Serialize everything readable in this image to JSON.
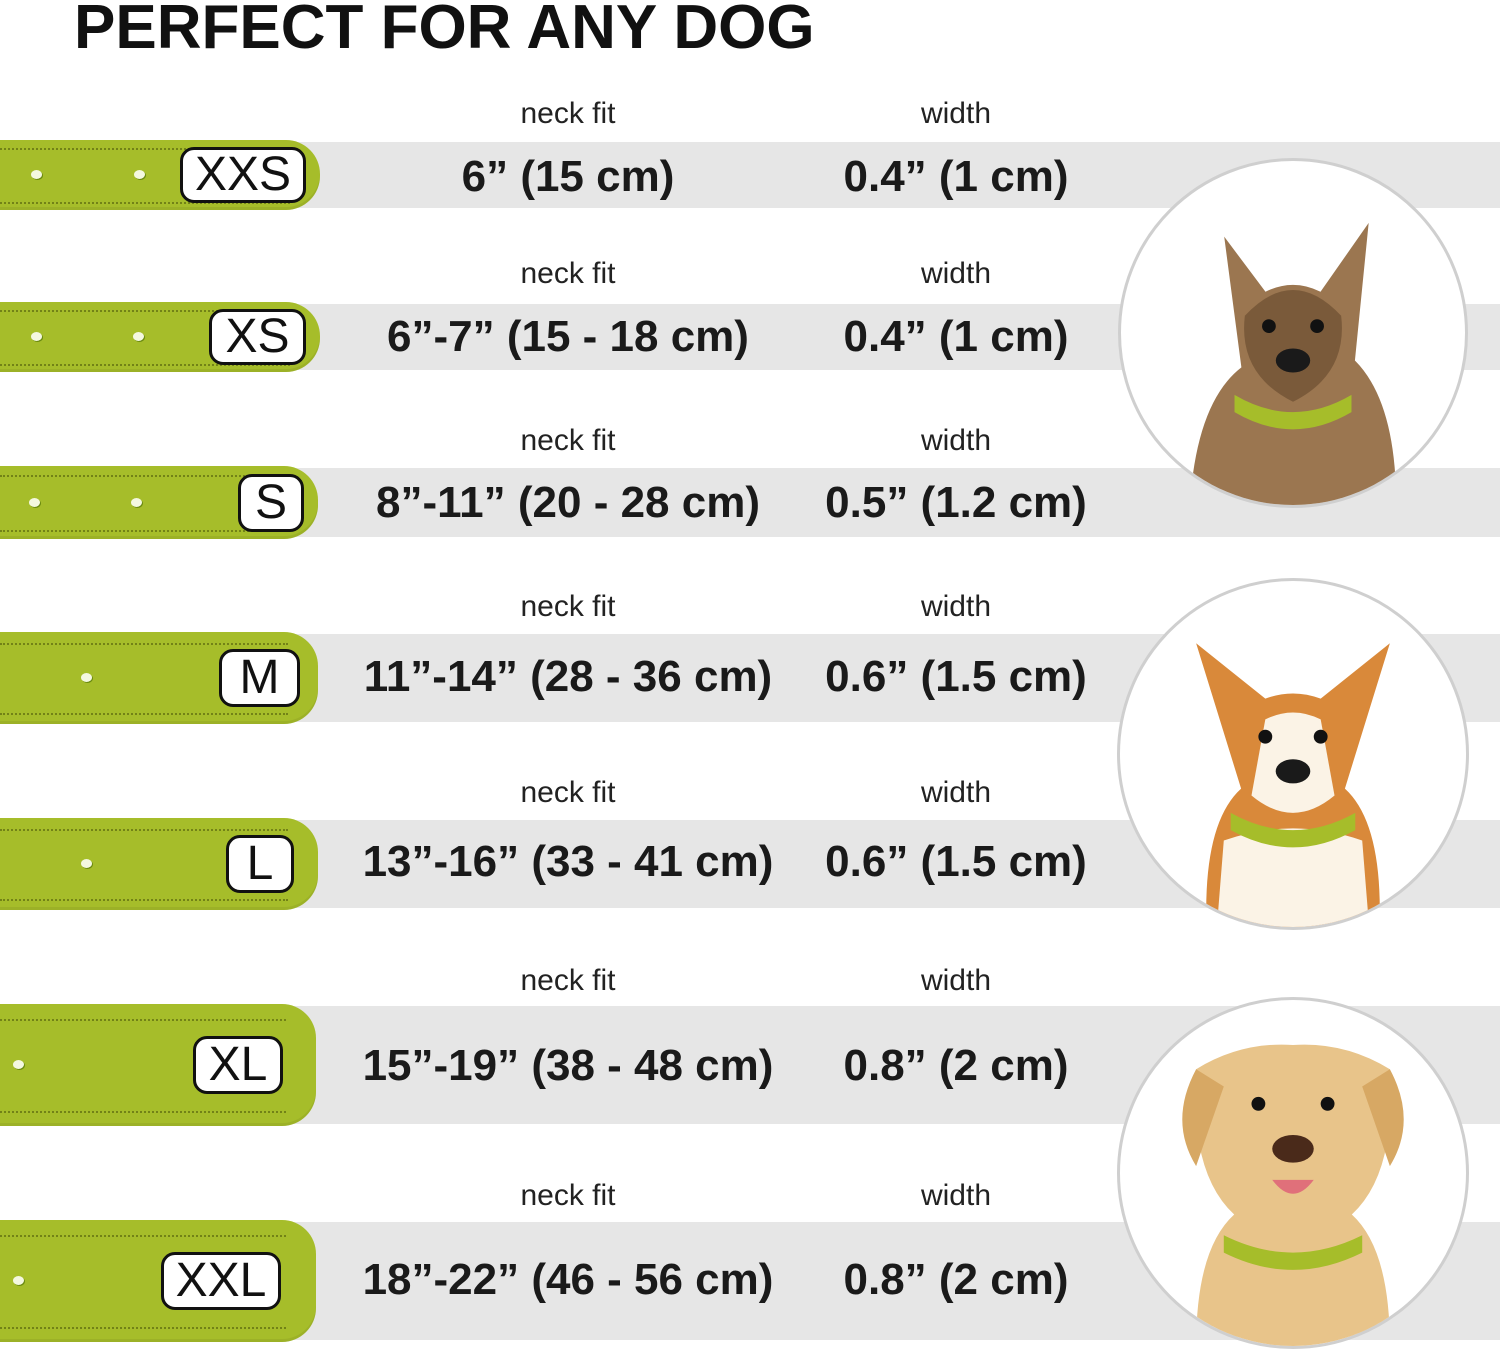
{
  "title": "PERFECT FOR ANY DOG",
  "colors": {
    "collar": "#a6bd2a",
    "band": "#e6e6e6"
  },
  "column_labels": {
    "neck_fit": "neck fit",
    "width": "width"
  },
  "sizes": [
    {
      "size": "XXS",
      "neck_fit": "6” (15 cm)",
      "width": "0.4” (1 cm)"
    },
    {
      "size": "XS",
      "neck_fit": "6”-7” (15 - 18 cm)",
      "width": "0.4” (1 cm)"
    },
    {
      "size": "S",
      "neck_fit": "8”-11” (20 - 28 cm)",
      "width": "0.5” (1.2 cm)"
    },
    {
      "size": "M",
      "neck_fit": "11”-14” (28 - 36 cm)",
      "width": "0.6” (1.5 cm)"
    },
    {
      "size": "L",
      "neck_fit": "13”-16” (33 - 41 cm)",
      "width": "0.6” (1.5 cm)"
    },
    {
      "size": "XL",
      "neck_fit": "15”-19” (38 - 48 cm)",
      "width": "0.8” (2 cm)"
    },
    {
      "size": "XXL",
      "neck_fit": "18”-22” (46 - 56 cm)",
      "width": "0.8” (2 cm)"
    }
  ],
  "dog_images": [
    "small-terrier-photo",
    "corgi-photo",
    "labrador-photo"
  ]
}
